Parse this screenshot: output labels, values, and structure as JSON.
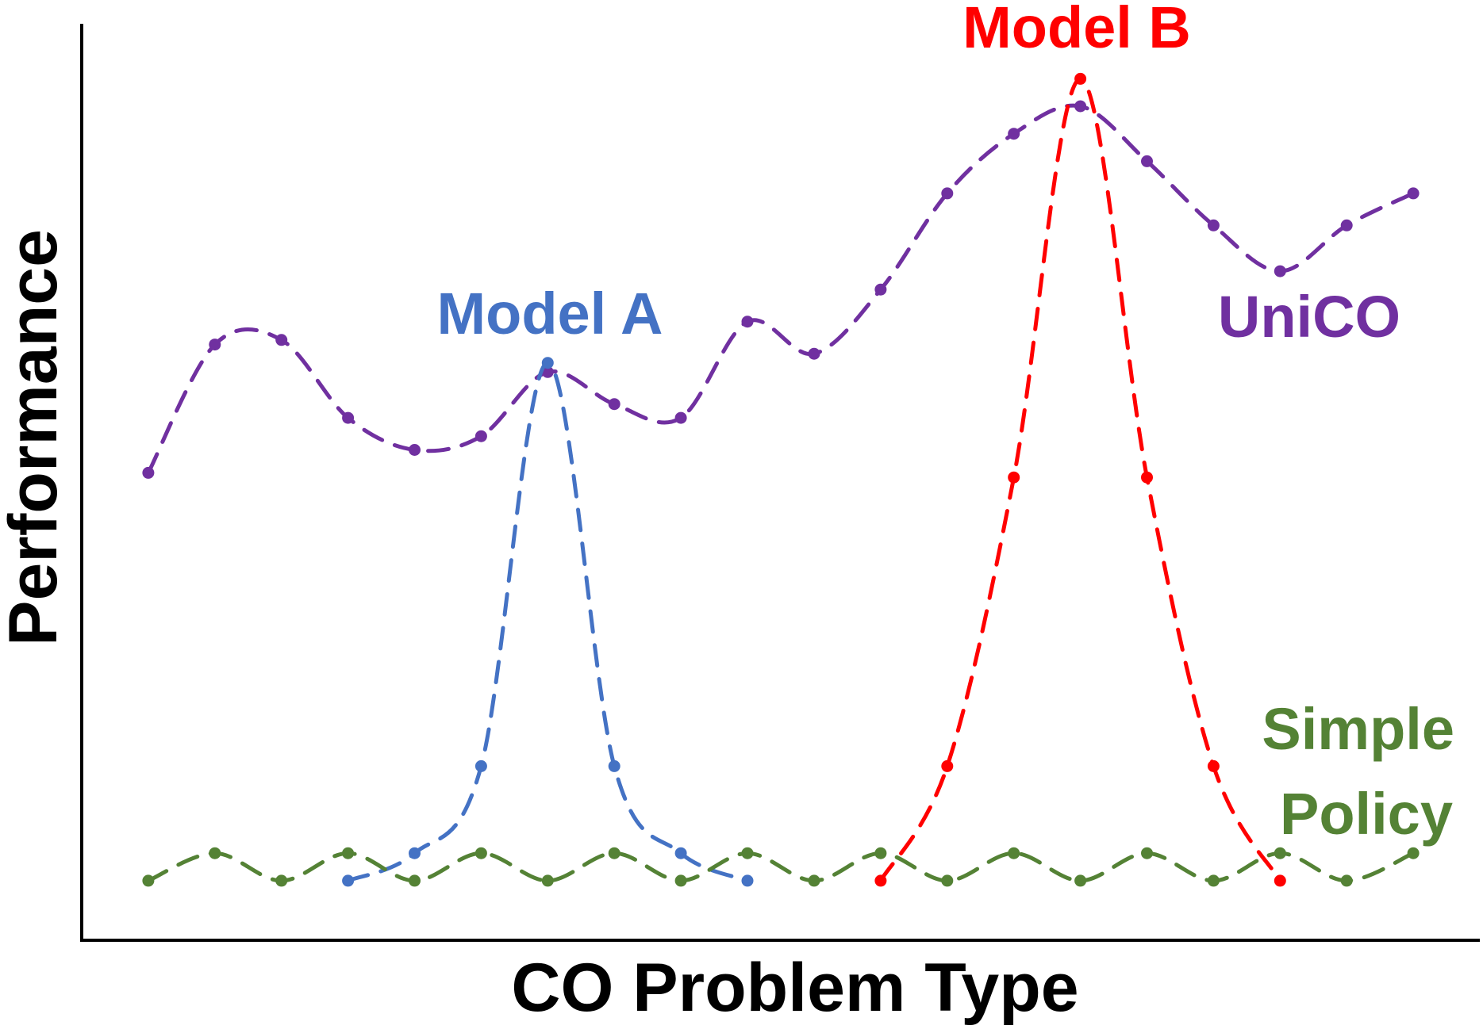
{
  "chart_data": {
    "type": "line",
    "title": "",
    "xlabel": "CO Problem Type",
    "ylabel": "Performance",
    "x": [
      1,
      2,
      3,
      4,
      5,
      6,
      7,
      8,
      9,
      10,
      11,
      12,
      13,
      14,
      15,
      16,
      17,
      18,
      19,
      20
    ],
    "xlim": [
      0,
      21
    ],
    "ylim": [
      0,
      100
    ],
    "grid": false,
    "series": [
      {
        "name": "UniCO",
        "color": "#7030A0",
        "label_lines": [
          "UniCO"
        ],
        "points": [
          [
            1,
            51
          ],
          [
            2,
            65
          ],
          [
            3,
            65.5
          ],
          [
            4,
            57
          ],
          [
            5,
            53.5
          ],
          [
            6,
            55
          ],
          [
            7,
            62
          ],
          [
            8,
            58.5
          ],
          [
            9,
            57
          ],
          [
            10,
            67.5
          ],
          [
            11,
            64
          ],
          [
            12,
            71
          ],
          [
            13,
            81.5
          ],
          [
            14,
            88
          ],
          [
            15,
            91
          ],
          [
            16,
            85
          ],
          [
            17,
            78
          ],
          [
            18,
            73
          ],
          [
            19,
            78
          ],
          [
            20,
            81.5
          ]
        ]
      },
      {
        "name": "Model A",
        "color": "#4472C4",
        "label_lines": [
          "Model A"
        ],
        "points": [
          [
            4,
            6.5
          ],
          [
            5,
            9.5
          ],
          [
            6,
            19
          ],
          [
            7,
            63
          ],
          [
            8,
            19
          ],
          [
            9,
            9.5
          ],
          [
            10,
            6.5
          ]
        ]
      },
      {
        "name": "Model B",
        "color": "#FF0000",
        "label_lines": [
          "Model B"
        ],
        "points": [
          [
            12,
            6.5
          ],
          [
            13,
            19
          ],
          [
            14,
            50.5
          ],
          [
            15,
            94
          ],
          [
            16,
            50.5
          ],
          [
            17,
            19
          ],
          [
            18,
            6.5
          ]
        ]
      },
      {
        "name": "Simple Policy",
        "color": "#548235",
        "label_lines": [
          "Simple",
          "Policy"
        ],
        "points": [
          [
            1,
            6.5
          ],
          [
            2,
            9.5
          ],
          [
            3,
            6.5
          ],
          [
            4,
            9.5
          ],
          [
            5,
            6.5
          ],
          [
            6,
            9.5
          ],
          [
            7,
            6.5
          ],
          [
            8,
            9.5
          ],
          [
            9,
            6.5
          ],
          [
            10,
            9.5
          ],
          [
            11,
            6.5
          ],
          [
            12,
            9.5
          ],
          [
            13,
            6.5
          ],
          [
            14,
            9.5
          ],
          [
            15,
            6.5
          ],
          [
            16,
            9.5
          ],
          [
            17,
            6.5
          ],
          [
            18,
            9.5
          ],
          [
            19,
            6.5
          ],
          [
            20,
            9.5
          ]
        ]
      }
    ]
  }
}
